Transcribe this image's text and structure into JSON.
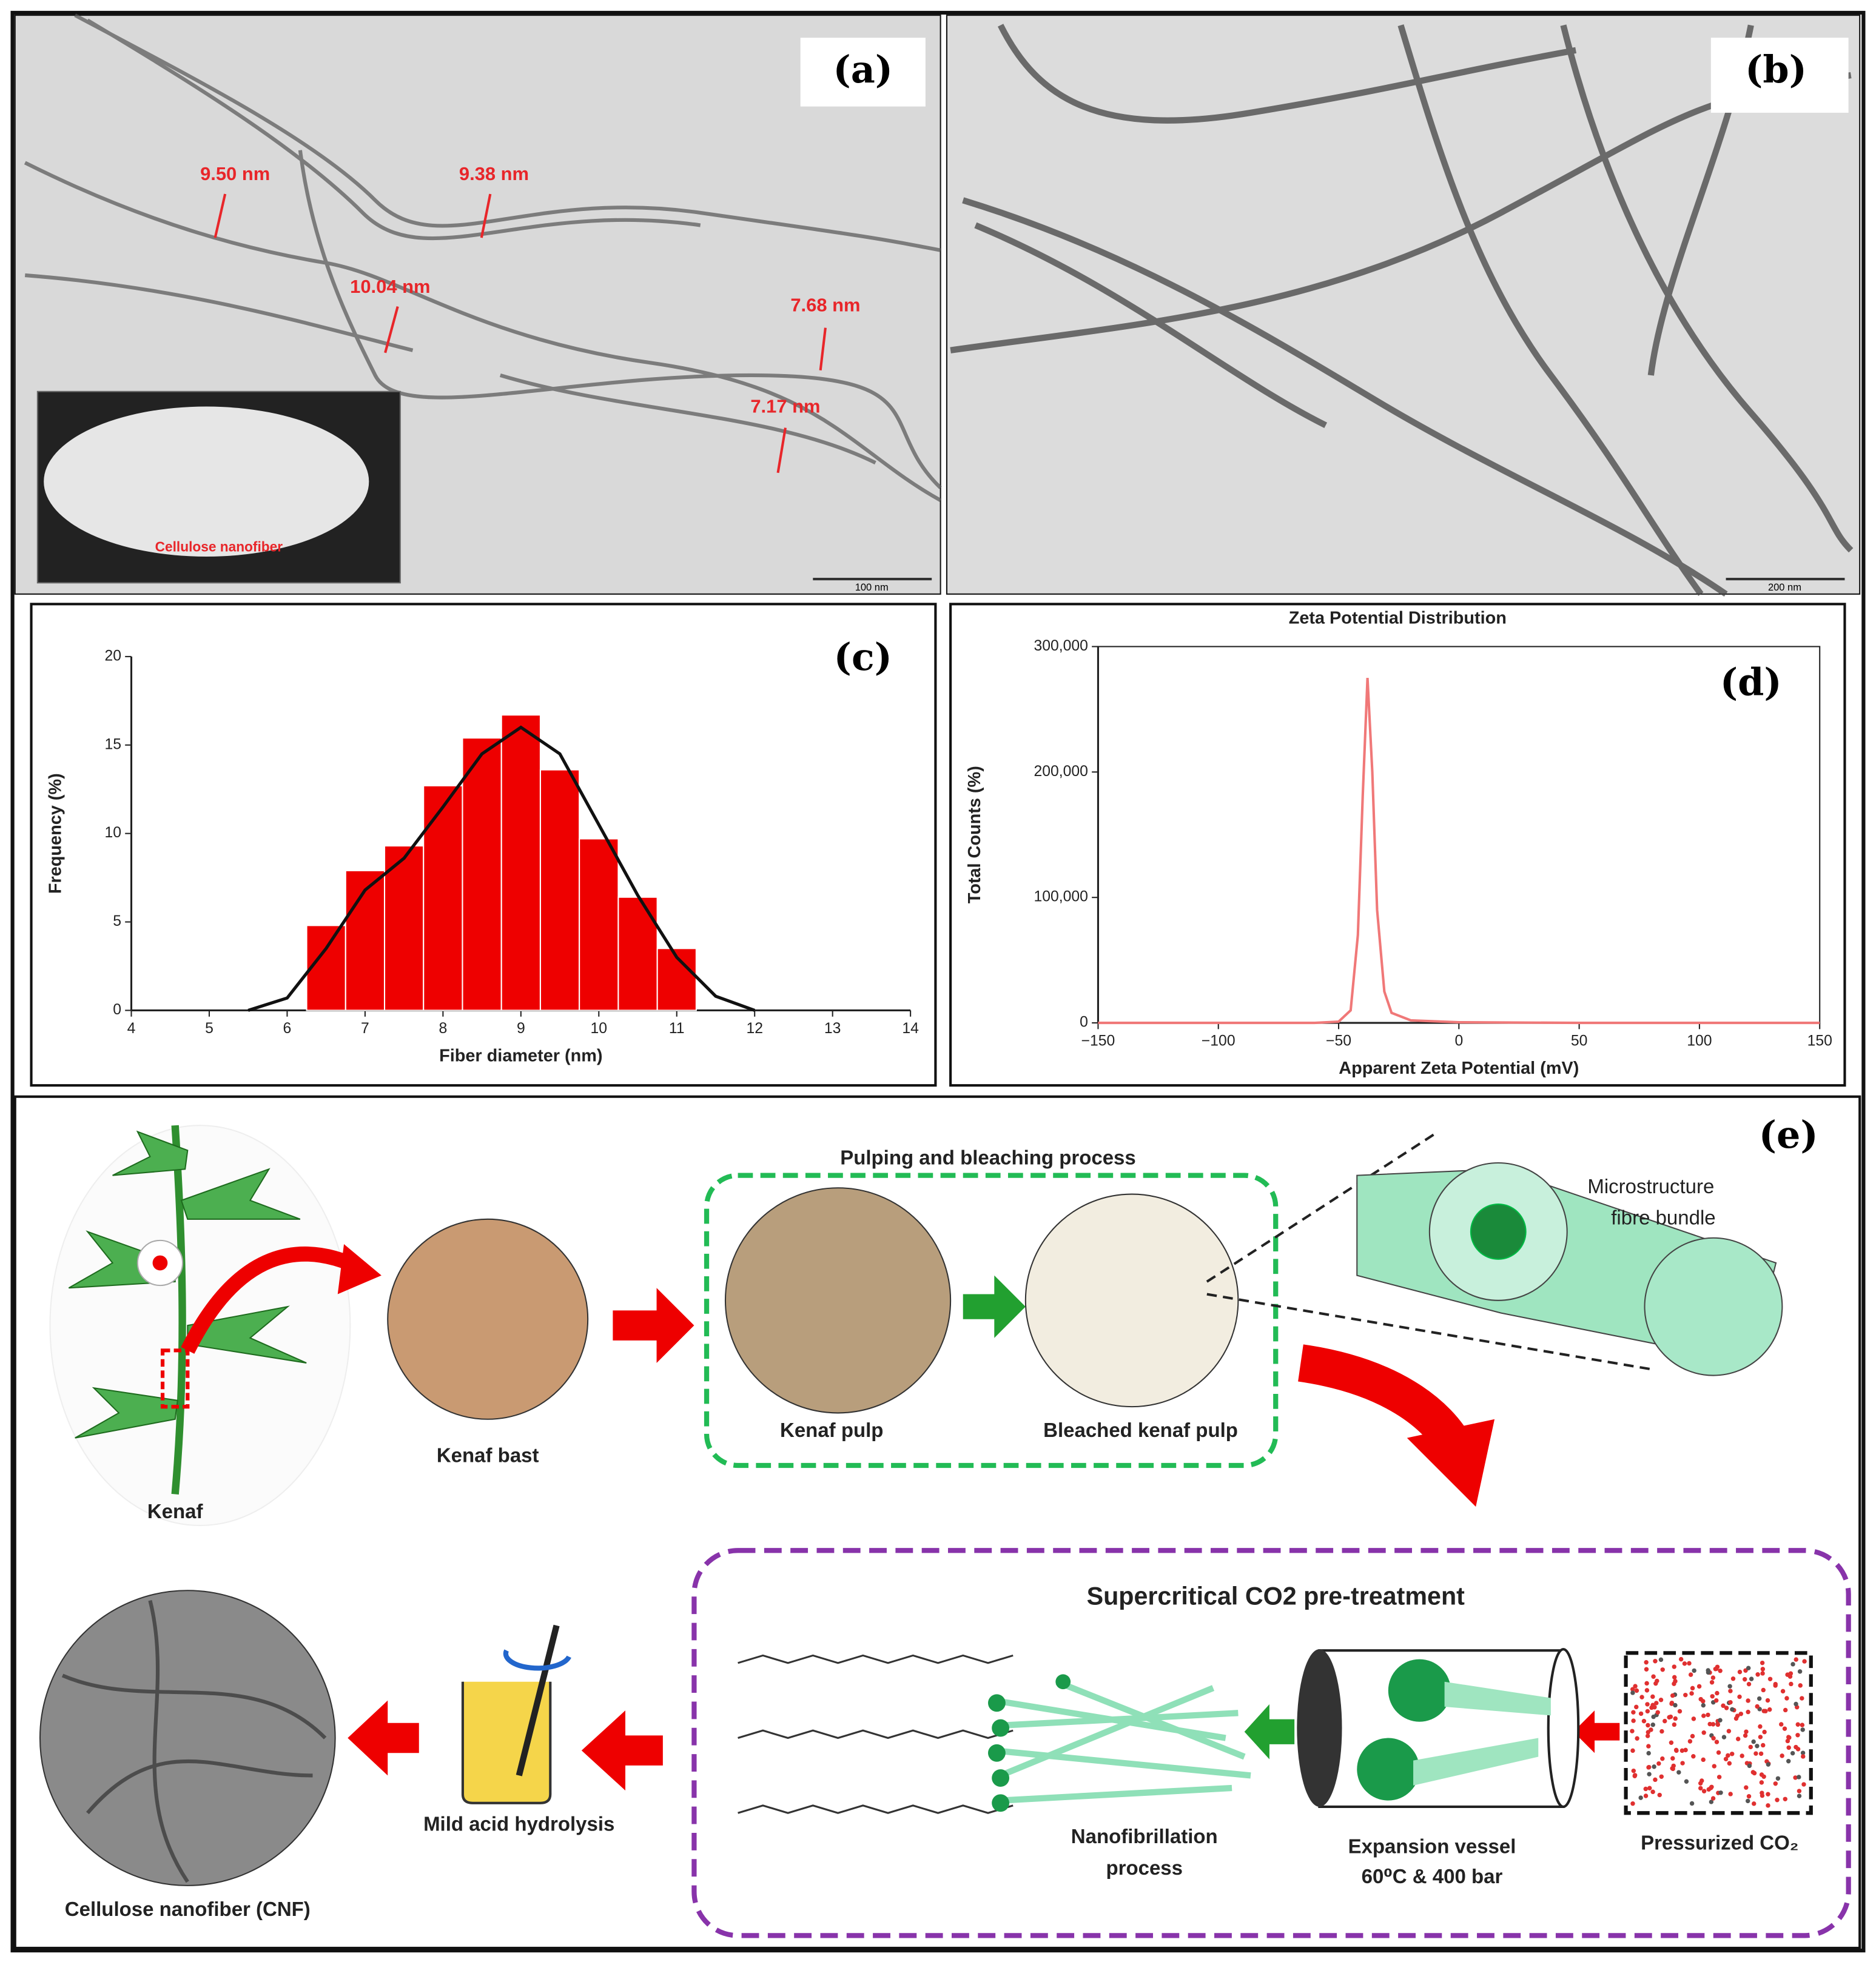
{
  "panels": {
    "a": {
      "label": "(a)",
      "measurements": [
        "9.50 nm",
        "9.38 nm",
        "10.04 nm",
        "7.68 nm",
        "7.17 nm"
      ],
      "inset_caption": "Cellulose nanofiber",
      "scale_bar": "100 nm"
    },
    "b": {
      "label": "(b)",
      "scale_bar": "200 nm"
    },
    "e": {
      "label": "(e)",
      "plant": "Kenaf",
      "bast": "Kenaf bast",
      "pulping_title": "Pulping and bleaching process",
      "pulp": "Kenaf pulp",
      "bleached": "Bleached kenaf pulp",
      "bundle": [
        "Microstructure",
        "fibre bundle"
      ],
      "sc_title": "Supercritical CO2 pre-treatment",
      "co2": "Pressurized CO₂",
      "vessel": [
        "Expansion vessel",
        "60⁰C & 400 bar"
      ],
      "nanofib": [
        "Nanofibrillation",
        "process"
      ],
      "hydrolysis": "Mild acid hydrolysis",
      "cnf": "Cellulose nanofiber (CNF)"
    }
  },
  "chart_data": [
    {
      "type": "histogram",
      "panel_label": "(c)",
      "xlabel": "Fiber diameter (nm)",
      "ylabel": "Frequency (%)",
      "color": "#ee0000",
      "bins": [
        6.25,
        6.75,
        7.25,
        7.75,
        8.25,
        8.75,
        9.25,
        9.75,
        10.25,
        10.75,
        11.25
      ],
      "counts": [
        4.8,
        7.9,
        9.3,
        12.7,
        15.4,
        16.7,
        13.6,
        9.7,
        6.4,
        3.5
      ],
      "curve": {
        "color": "#111111",
        "x": [
          5.5,
          6,
          6.5,
          7,
          7.5,
          8,
          8.5,
          9,
          9.5,
          10,
          10.5,
          11,
          11.5,
          12
        ],
        "values": [
          0,
          0.7,
          3.5,
          6.8,
          8.6,
          11.5,
          14.5,
          16,
          14.5,
          10.5,
          6.5,
          3,
          0.8,
          0
        ]
      },
      "xlim": [
        4,
        14
      ],
      "xticks": [
        4,
        5,
        6,
        7,
        8,
        9,
        10,
        11,
        12,
        13,
        14
      ],
      "ylim": [
        0,
        20
      ],
      "yticks": [
        0,
        5,
        10,
        15,
        20
      ]
    },
    {
      "type": "line",
      "title": "Zeta Potential Distribution",
      "panel_label": "(d)",
      "xlabel": "Apparent Zeta Potential (mV)",
      "ylabel": "Total Counts (%)",
      "color": "#f07878",
      "x": [
        -150,
        -60,
        -50,
        -45,
        -42,
        -40,
        -38,
        -36,
        -34,
        -31,
        -28,
        -20,
        0,
        50,
        150
      ],
      "values": [
        0,
        0,
        1000,
        10000,
        70000,
        180000,
        275000,
        200000,
        90000,
        25000,
        8000,
        2000,
        500,
        0,
        0
      ],
      "xlim": [
        -150,
        150
      ],
      "xticks": [
        {
          "value": -150,
          "label": "−150"
        },
        {
          "value": -100,
          "label": "−100"
        },
        {
          "value": -50,
          "label": "−50"
        },
        0,
        50,
        100,
        150
      ],
      "ylim": [
        0,
        300000
      ],
      "yticks": [
        0,
        {
          "value": 100000,
          "label": "100,000"
        },
        {
          "value": 200000,
          "label": "200,000"
        },
        {
          "value": 300000,
          "label": "300,000"
        }
      ]
    }
  ]
}
